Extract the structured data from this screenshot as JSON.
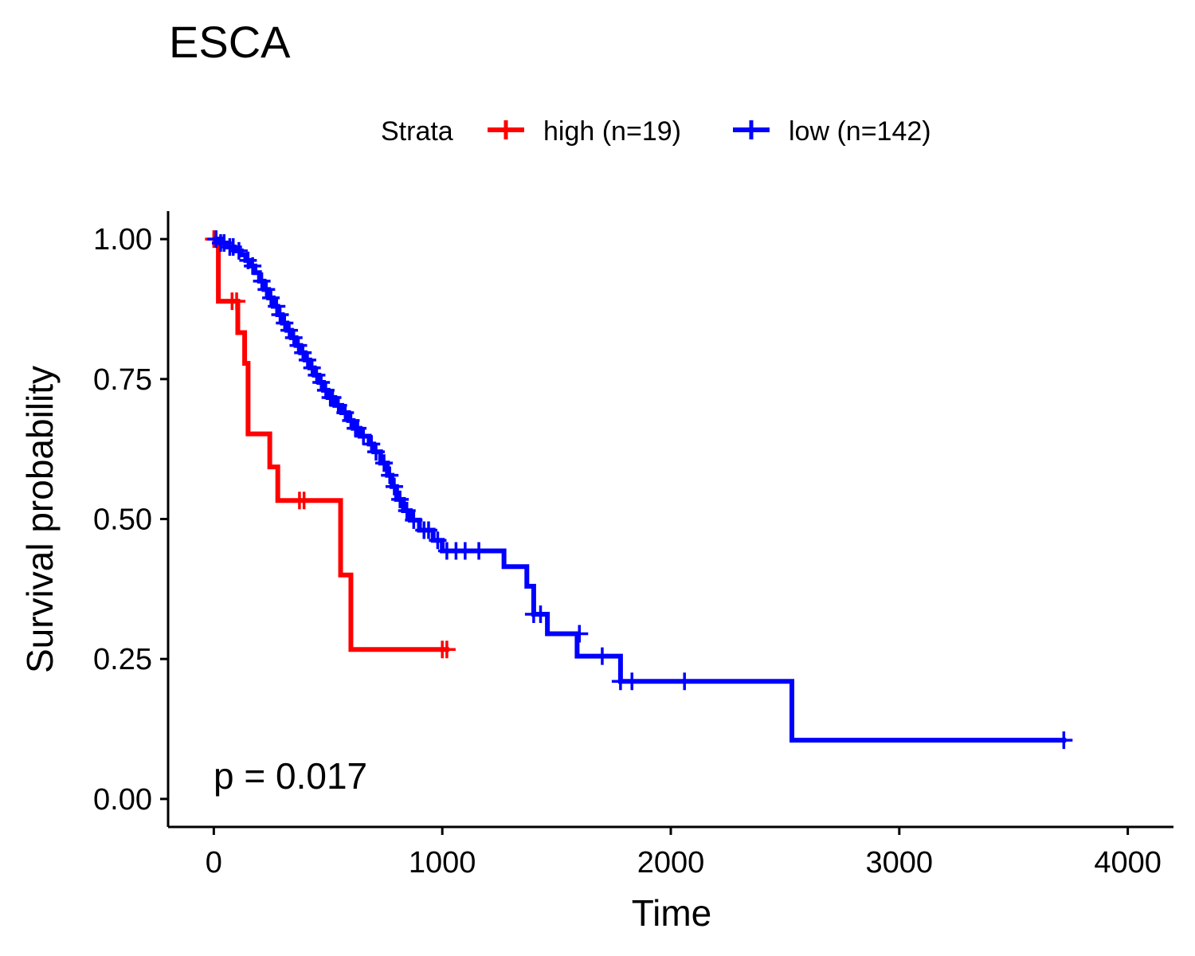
{
  "chart_data": {
    "type": "line",
    "subtype": "kaplan-meier step",
    "title": "ESCA",
    "xlabel": "Time",
    "ylabel": "Survival probability",
    "xlim": [
      -200,
      4200
    ],
    "ylim": [
      -0.05,
      1.05
    ],
    "xticks": [
      0,
      1000,
      2000,
      3000,
      4000
    ],
    "xtick_labels": [
      "0",
      "1000",
      "2000",
      "3000",
      "4000"
    ],
    "yticks": [
      0,
      0.25,
      0.5,
      0.75,
      1.0
    ],
    "ytick_labels": [
      "0.00",
      "0.25",
      "0.50",
      "0.75",
      "1.00"
    ],
    "grid": false,
    "legend": {
      "title": "Strata",
      "position": "top"
    },
    "annotation": "p = 0.017",
    "series": [
      {
        "name": "high (n=19)",
        "color": "#ff0000",
        "steps": [
          [
            0,
            1.0
          ],
          [
            20,
            0.889
          ],
          [
            105,
            0.833
          ],
          [
            135,
            0.778
          ],
          [
            150,
            0.652
          ],
          [
            245,
            0.593
          ],
          [
            280,
            0.533
          ],
          [
            555,
            0.4
          ],
          [
            600,
            0.267
          ],
          [
            1030,
            0.267
          ]
        ],
        "censor": [
          [
            0,
            1.0
          ],
          [
            80,
            0.889
          ],
          [
            100,
            0.889
          ],
          [
            375,
            0.533
          ],
          [
            395,
            0.533
          ],
          [
            1000,
            0.267
          ],
          [
            1020,
            0.267
          ]
        ]
      },
      {
        "name": "low (n=142)",
        "color": "#0000ff",
        "steps": [
          [
            0,
            1.0
          ],
          [
            30,
            0.993
          ],
          [
            60,
            0.986
          ],
          [
            90,
            0.979
          ],
          [
            120,
            0.972
          ],
          [
            140,
            0.962
          ],
          [
            160,
            0.952
          ],
          [
            180,
            0.94
          ],
          [
            200,
            0.925
          ],
          [
            220,
            0.91
          ],
          [
            240,
            0.895
          ],
          [
            260,
            0.88
          ],
          [
            280,
            0.865
          ],
          [
            300,
            0.85
          ],
          [
            320,
            0.837
          ],
          [
            340,
            0.824
          ],
          [
            360,
            0.81
          ],
          [
            380,
            0.797
          ],
          [
            400,
            0.784
          ],
          [
            420,
            0.77
          ],
          [
            440,
            0.757
          ],
          [
            460,
            0.744
          ],
          [
            480,
            0.73
          ],
          [
            500,
            0.717
          ],
          [
            530,
            0.703
          ],
          [
            560,
            0.69
          ],
          [
            590,
            0.676
          ],
          [
            610,
            0.662
          ],
          [
            640,
            0.648
          ],
          [
            680,
            0.634
          ],
          [
            700,
            0.62
          ],
          [
            730,
            0.6
          ],
          [
            760,
            0.578
          ],
          [
            780,
            0.558
          ],
          [
            800,
            0.535
          ],
          [
            830,
            0.515
          ],
          [
            860,
            0.498
          ],
          [
            900,
            0.48
          ],
          [
            960,
            0.462
          ],
          [
            1000,
            0.443
          ],
          [
            1270,
            0.415
          ],
          [
            1370,
            0.38
          ],
          [
            1400,
            0.33
          ],
          [
            1460,
            0.295
          ],
          [
            1590,
            0.255
          ],
          [
            1780,
            0.21
          ],
          [
            2530,
            0.105
          ],
          [
            3730,
            0.105
          ]
        ],
        "censor": [
          [
            10,
            1.0
          ],
          [
            30,
            0.993
          ],
          [
            45,
            0.993
          ],
          [
            70,
            0.986
          ],
          [
            85,
            0.986
          ],
          [
            110,
            0.979
          ],
          [
            150,
            0.962
          ],
          [
            170,
            0.952
          ],
          [
            210,
            0.925
          ],
          [
            230,
            0.91
          ],
          [
            250,
            0.895
          ],
          [
            275,
            0.88
          ],
          [
            290,
            0.865
          ],
          [
            310,
            0.85
          ],
          [
            330,
            0.837
          ],
          [
            350,
            0.824
          ],
          [
            370,
            0.81
          ],
          [
            390,
            0.797
          ],
          [
            410,
            0.784
          ],
          [
            430,
            0.77
          ],
          [
            450,
            0.757
          ],
          [
            470,
            0.744
          ],
          [
            490,
            0.73
          ],
          [
            510,
            0.717
          ],
          [
            520,
            0.717
          ],
          [
            545,
            0.703
          ],
          [
            575,
            0.69
          ],
          [
            600,
            0.676
          ],
          [
            620,
            0.662
          ],
          [
            630,
            0.662
          ],
          [
            655,
            0.648
          ],
          [
            690,
            0.634
          ],
          [
            710,
            0.62
          ],
          [
            745,
            0.6
          ],
          [
            770,
            0.578
          ],
          [
            790,
            0.558
          ],
          [
            815,
            0.535
          ],
          [
            845,
            0.515
          ],
          [
            875,
            0.498
          ],
          [
            920,
            0.48
          ],
          [
            940,
            0.48
          ],
          [
            980,
            0.462
          ],
          [
            1020,
            0.443
          ],
          [
            1060,
            0.443
          ],
          [
            1100,
            0.443
          ],
          [
            1160,
            0.443
          ],
          [
            1400,
            0.33
          ],
          [
            1430,
            0.33
          ],
          [
            1600,
            0.295
          ],
          [
            1700,
            0.255
          ],
          [
            1780,
            0.21
          ],
          [
            1830,
            0.21
          ],
          [
            2060,
            0.21
          ],
          [
            3720,
            0.105
          ]
        ]
      }
    ]
  }
}
